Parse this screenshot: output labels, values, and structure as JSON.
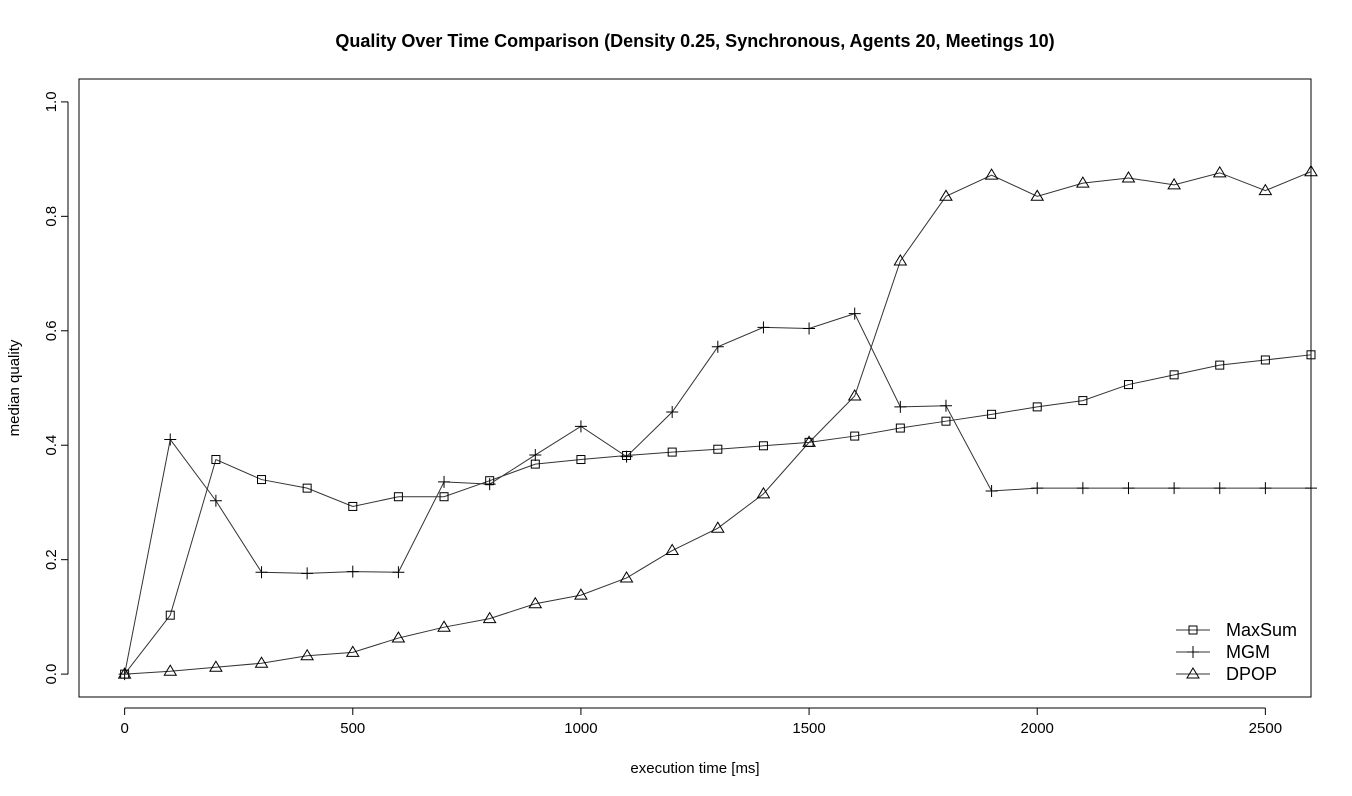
{
  "chart_data": {
    "type": "line",
    "title": "Quality Over Time Comparison (Density 0.25, Synchronous, Agents 20, Meetings 10)",
    "xlabel": "execution time [ms]",
    "ylabel": "median quality",
    "xlim": [
      -100,
      2600
    ],
    "ylim": [
      -0.04,
      1.04
    ],
    "xticks": [
      0,
      500,
      1000,
      1500,
      2000,
      2500
    ],
    "xtick_labels": [
      "0",
      "500",
      "1000",
      "1500",
      "2000",
      "2500"
    ],
    "yticks": [
      0.0,
      0.2,
      0.4,
      0.6,
      0.8,
      1.0
    ],
    "ytick_labels": [
      "0.0",
      "0.2",
      "0.4",
      "0.6",
      "0.8",
      "1.0"
    ],
    "grid": false,
    "legend_position": "bottom-right",
    "x": [
      0,
      100,
      200,
      300,
      400,
      500,
      600,
      700,
      800,
      900,
      1000,
      1100,
      1200,
      1300,
      1400,
      1500,
      1600,
      1700,
      1800,
      1900,
      2000,
      2100,
      2200,
      2300,
      2400,
      2500,
      2600
    ],
    "series": [
      {
        "name": "MaxSum",
        "marker": "square",
        "values": [
          0.0,
          0.103,
          0.375,
          0.34,
          0.325,
          0.293,
          0.31,
          0.31,
          0.338,
          0.367,
          0.375,
          0.382,
          0.388,
          0.393,
          0.399,
          0.405,
          0.416,
          0.43,
          0.442,
          0.454,
          0.467,
          0.478,
          0.506,
          0.523,
          0.54,
          0.549,
          0.558
        ]
      },
      {
        "name": "MGM",
        "marker": "plus",
        "values": [
          0.0,
          0.41,
          0.303,
          0.178,
          0.176,
          0.179,
          0.178,
          0.336,
          0.332,
          0.383,
          0.433,
          0.38,
          0.458,
          0.572,
          0.606,
          0.604,
          0.63,
          0.467,
          0.469,
          0.32,
          0.325,
          0.325,
          0.325,
          0.325,
          0.325,
          0.325,
          0.325
        ]
      },
      {
        "name": "DPOP",
        "marker": "triangle",
        "values": [
          0.0,
          0.005,
          0.012,
          0.019,
          0.032,
          0.038,
          0.063,
          0.082,
          0.097,
          0.123,
          0.138,
          0.168,
          0.216,
          0.255,
          0.315,
          0.405,
          0.486,
          0.722,
          0.835,
          0.872,
          0.835,
          0.858,
          0.867,
          0.855,
          0.876,
          0.845,
          0.878
        ]
      }
    ]
  }
}
